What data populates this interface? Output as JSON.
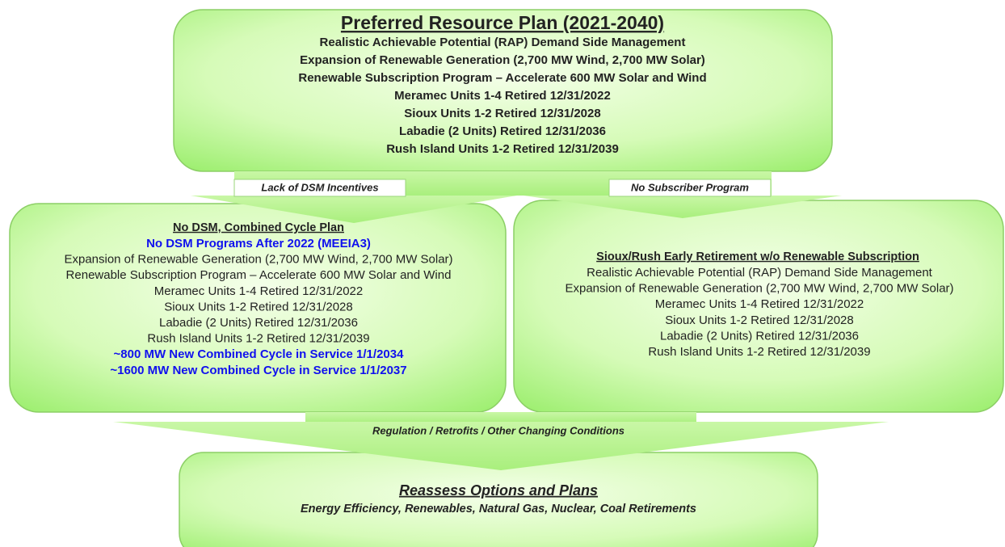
{
  "top_box": {
    "title": "Preferred Resource Plan (2021-2040)",
    "lines": [
      "Realistic Achievable Potential (RAP) Demand Side Management",
      "Expansion of Renewable Generation (2,700 MW Wind, 2,700 MW Solar)",
      "Renewable Subscription Program – Accelerate 600 MW Solar and Wind",
      "Meramec Units 1-4 Retired 12/31/2022",
      "Sioux Units 1-2 Retired 12/31/2028",
      "Labadie (2 Units) Retired 12/31/2036",
      "Rush Island Units 1-2 Retired 12/31/2039"
    ]
  },
  "arrows": {
    "left": "Lack of DSM Incentives",
    "right": "No Subscriber Program",
    "bottom": "Regulation / Retrofits / Other Changing Conditions"
  },
  "left_box": {
    "title": "No DSM, Combined Cycle Plan",
    "lines": [
      {
        "text": "No DSM Programs After 2022 (MEEIA3)",
        "color": "#1010ee"
      },
      {
        "text": "Expansion of Renewable Generation (2,700 MW Wind, 2,700 MW Solar)",
        "color": "#222222"
      },
      {
        "text": "Renewable Subscription Program – Accelerate 600 MW Solar and Wind",
        "color": "#222222"
      },
      {
        "text": "Meramec Units 1-4 Retired 12/31/2022",
        "color": "#222222"
      },
      {
        "text": "Sioux Units 1-2 Retired 12/31/2028",
        "color": "#222222"
      },
      {
        "text": "Labadie (2 Units) Retired 12/31/2036",
        "color": "#222222"
      },
      {
        "text": "Rush Island Units 1-2 Retired 12/31/2039",
        "color": "#222222"
      },
      {
        "text": "~800 MW New Combined Cycle in Service 1/1/2034",
        "color": "#1010ee"
      },
      {
        "text": "~1600 MW New Combined Cycle in Service 1/1/2037",
        "color": "#1010ee"
      }
    ]
  },
  "right_box": {
    "title": "Sioux/Rush Early Retirement w/o Renewable Subscription",
    "lines": [
      "Realistic Achievable Potential (RAP) Demand Side Management",
      "Expansion of Renewable Generation (2,700 MW Wind, 2,700 MW Solar)",
      "Meramec Units 1-4 Retired 12/31/2022",
      "Sioux Units 1-2 Retired 12/31/2028",
      "Labadie (2 Units) Retired 12/31/2036",
      "Rush Island Units 1-2 Retired 12/31/2039"
    ]
  },
  "bottom_box": {
    "title": "Reassess Options and Plans",
    "subtitle": "Energy Efficiency,  Renewables, Natural Gas, Nuclear, Coal Retirements"
  }
}
